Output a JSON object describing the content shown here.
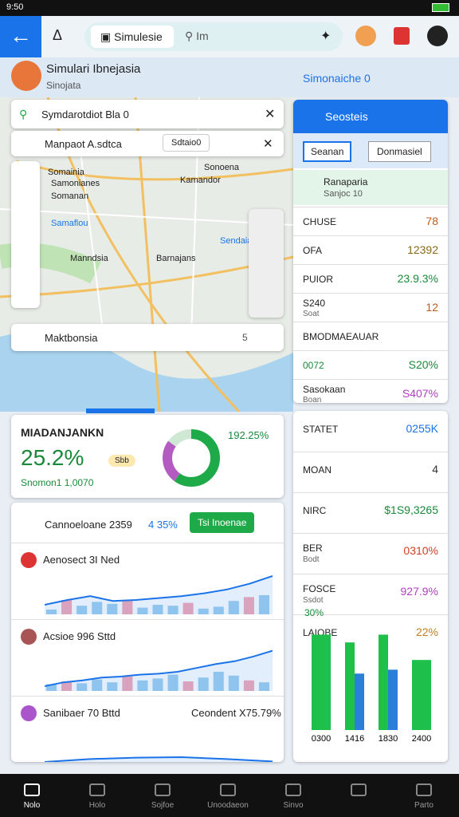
{
  "status_bar": {
    "time": "9:50"
  },
  "top_bar": {
    "tab_label": "Simulesie",
    "search_placeholder": "Im"
  },
  "profile": {
    "name": "Simulari Ibnejasia",
    "subtitle": "Sinojata",
    "right_label": "Simonaiche 0"
  },
  "map": {
    "search": "Symdarotdiot Bla 0",
    "location": "Manpaot A.sdtca",
    "chip": "Sdtaio0",
    "places": [
      "Somainia",
      "Samonianes",
      "Somanan",
      "Manndsia",
      "Barnajans",
      "Kamandor",
      "Sonoena",
      "Samaflou",
      "Sendaia"
    ],
    "bottom_label": "Maktbonsia",
    "bottom_count": "5"
  },
  "side_panel": {
    "title": "Seosteis",
    "tabs": [
      "Seanan",
      "Donmasiel"
    ],
    "featured": {
      "title": "Ranaparia",
      "subtitle": "Sanjoc 10"
    },
    "rows": [
      {
        "label": "CHUSE",
        "value": "78"
      },
      {
        "label": "OFA",
        "value": "12392"
      },
      {
        "label": "PUIOR",
        "value": "23.9.3%"
      },
      {
        "label": "S240",
        "sublabel": "Soat",
        "value": "12"
      },
      {
        "label": "BMODMAEAUAR"
      },
      {
        "label": "0072",
        "value": "S20%"
      },
      {
        "label": "Sasokaan",
        "sublabel": "Boan",
        "value": "S407%"
      }
    ]
  },
  "kpi": {
    "title": "MIADANJANKN",
    "value": "25.2%",
    "badge": "Sbb",
    "legend": "Snomon1 1,0070",
    "donut_label": "192.25%",
    "donut": [
      {
        "value": 60,
        "color": "#1faa4a"
      },
      {
        "value": 25,
        "color": "#b45bc2"
      },
      {
        "value": 15,
        "color": "#cfe8d4"
      }
    ]
  },
  "list_card": {
    "title": "Cannoeloane 2359",
    "change": "4 35%",
    "button": "Tsi Inoenae",
    "items": [
      {
        "title": "Aenosect 3I Ned",
        "line": [
          20,
          30,
          38,
          28,
          30,
          34,
          38,
          44,
          52,
          64,
          80
        ],
        "bars": [
          10,
          30,
          18,
          26,
          22,
          30,
          14,
          20,
          18,
          24,
          12,
          16,
          28,
          36,
          40
        ]
      },
      {
        "title": "Acsioe 996 Sttd",
        "line": [
          10,
          18,
          22,
          28,
          30,
          34,
          36,
          40,
          48,
          56,
          62,
          72,
          84
        ],
        "bars": [
          14,
          20,
          16,
          24,
          18,
          30,
          22,
          26,
          34,
          20,
          28,
          40,
          32,
          22,
          18
        ]
      },
      {
        "title": "Sanibaer 70 Bttd",
        "side": "Ceondent X75.79%",
        "line": [
          10,
          22,
          28,
          30,
          22,
          12
        ]
      }
    ]
  },
  "stats_card": {
    "rows": [
      {
        "label": "STATET",
        "value": "0255K"
      },
      {
        "label": "MOAN",
        "value": "4"
      },
      {
        "label": "NIRC",
        "value": "$1S9,3265"
      },
      {
        "label": "BER",
        "sublabel": "Bodt",
        "value": "0310%"
      },
      {
        "label": "FOSCE",
        "sublabel": "Ssdot",
        "value": "927.9%"
      },
      {
        "label": "LAIOBE",
        "value": "22%"
      }
    ],
    "chart": {
      "type": "bar",
      "label": "30%",
      "categories": [
        "0300",
        "1416",
        "1830",
        "2400"
      ],
      "ylim": [
        0,
        100
      ],
      "series": [
        {
          "color": "#1fbf4c",
          "values": [
            98,
            90,
            98,
            72
          ]
        },
        {
          "color": "#2a7fd8",
          "values": [
            null,
            58,
            62,
            null
          ]
        }
      ]
    }
  },
  "nav": [
    "Nolo",
    "Holo",
    "Sojfoe",
    "Unoodaeon",
    "Sinvo",
    "Parto"
  ]
}
